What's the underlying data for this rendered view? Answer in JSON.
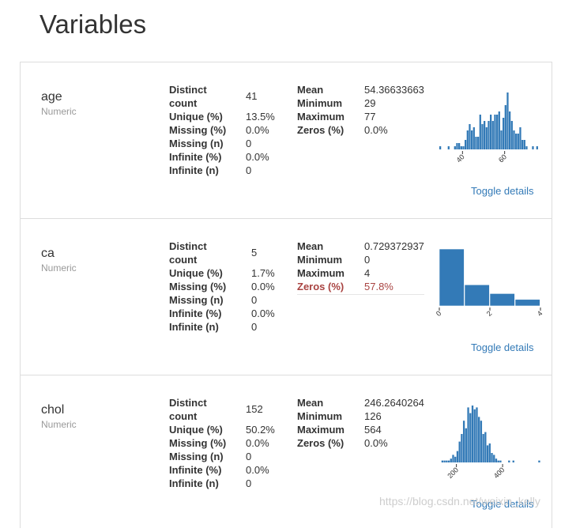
{
  "page": {
    "title": "Variables"
  },
  "stat_labels": {
    "distinct_count": "Distinct count",
    "unique_pct": "Unique (%)",
    "missing_pct": "Missing (%)",
    "missing_n": "Missing (n)",
    "infinite_pct": "Infinite (%)",
    "infinite_n": "Infinite (n)",
    "mean": "Mean",
    "minimum": "Minimum",
    "maximum": "Maximum",
    "zeros_pct": "Zeros (%)"
  },
  "variables": [
    {
      "name": "age",
      "type": "Numeric",
      "distinct_count": "41",
      "unique_pct": "13.5%",
      "missing_pct": "0.0%",
      "missing_n": "0",
      "infinite_pct": "0.0%",
      "infinite_n": "0",
      "mean": "54.36633663",
      "minimum": "29",
      "maximum": "77",
      "zeros_pct": "0.0%",
      "zeros_warning": false,
      "toggle_label": "Toggle details"
    },
    {
      "name": "ca",
      "type": "Numeric",
      "distinct_count": "5",
      "unique_pct": "1.7%",
      "missing_pct": "0.0%",
      "missing_n": "0",
      "infinite_pct": "0.0%",
      "infinite_n": "0",
      "mean": "0.7293729373",
      "minimum": "0",
      "maximum": "4",
      "zeros_pct": "57.8%",
      "zeros_warning": true,
      "toggle_label": "Toggle details"
    },
    {
      "name": "chol",
      "type": "Numeric",
      "distinct_count": "152",
      "unique_pct": "50.2%",
      "missing_pct": "0.0%",
      "missing_n": "0",
      "infinite_pct": "0.0%",
      "infinite_n": "0",
      "mean": "246.2640264",
      "minimum": "126",
      "maximum": "564",
      "zeros_pct": "0.0%",
      "zeros_warning": false,
      "toggle_label": "Toggle details"
    }
  ],
  "chart_data": [
    {
      "type": "bar",
      "variable": "age",
      "xlim": [
        29,
        77
      ],
      "xticks": [
        40,
        60
      ],
      "bar_color": "#337ab7",
      "values": [
        1,
        0,
        0,
        0,
        1,
        0,
        0,
        1,
        2,
        2,
        1,
        1,
        3,
        6,
        8,
        6,
        7,
        4,
        4,
        11,
        8,
        9,
        7,
        9,
        11,
        9,
        11,
        11,
        12,
        6,
        10,
        14,
        18,
        12,
        9,
        6,
        5,
        5,
        7,
        3,
        3,
        1,
        0,
        0,
        1,
        0,
        1,
        0
      ]
    },
    {
      "type": "bar",
      "variable": "ca",
      "xlim": [
        0,
        4
      ],
      "xticks": [
        0,
        2,
        4
      ],
      "bar_color": "#337ab7",
      "values": [
        175,
        65,
        38,
        20
      ]
    },
    {
      "type": "bar",
      "variable": "chol",
      "xlim": [
        126,
        564
      ],
      "xticks": [
        200,
        400
      ],
      "bar_color": "#337ab7",
      "values": [
        0,
        1,
        1,
        1,
        1,
        2,
        4,
        3,
        6,
        11,
        15,
        22,
        18,
        29,
        26,
        30,
        28,
        29,
        24,
        22,
        15,
        16,
        9,
        10,
        5,
        4,
        2,
        1,
        1,
        0,
        0,
        0,
        1,
        0,
        1,
        0,
        0,
        0,
        0,
        0,
        0,
        0,
        0,
        0,
        0,
        0,
        1
      ]
    }
  ]
}
